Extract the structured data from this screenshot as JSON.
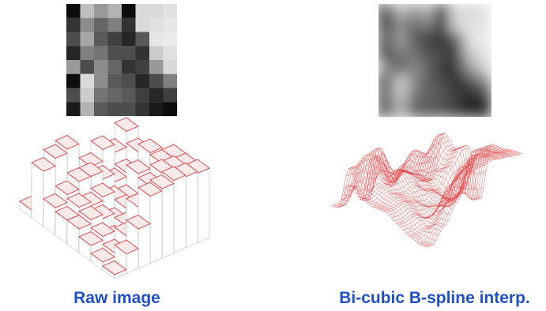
{
  "captions": {
    "left": "Raw image",
    "right": "Bi-cubic B-spline interp."
  }
}
